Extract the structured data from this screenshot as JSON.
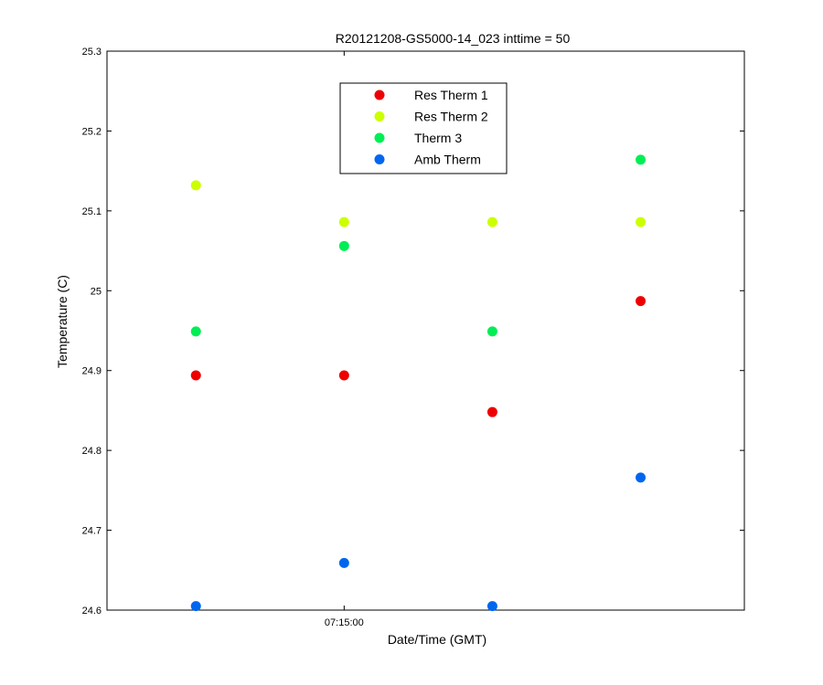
{
  "chart_data": {
    "type": "scatter",
    "title": "R20121208-GS5000-14_023 inttime = 50",
    "xlabel": "Date/Time (GMT)",
    "ylabel": "Temperature (C)",
    "ylim": [
      24.6,
      25.3
    ],
    "yticks": [
      24.6,
      24.7,
      24.8,
      24.9,
      25,
      25.1,
      25.2,
      25.3
    ],
    "ytick_labels": [
      "24.6",
      "24.7",
      "24.8",
      "24.9",
      "25",
      "25.1",
      "25.2",
      "25.3"
    ],
    "xticks": [
      {
        "label": "07:15:00",
        "x": 2
      }
    ],
    "xlim": [
      0.4,
      4.7
    ],
    "legend_position": "top-center",
    "series": [
      {
        "name": "Res Therm 1",
        "color": "#ee0000",
        "x": [
          1,
          2,
          3,
          4
        ],
        "y": [
          24.894,
          24.894,
          24.848,
          24.987
        ]
      },
      {
        "name": "Res Therm 2",
        "color": "#ccff00",
        "x": [
          1,
          2,
          3,
          4
        ],
        "y": [
          25.132,
          25.086,
          25.086,
          25.086
        ]
      },
      {
        "name": "Therm 3",
        "color": "#00ee55",
        "x": [
          1,
          2,
          3,
          4
        ],
        "y": [
          24.949,
          25.056,
          24.949,
          25.164
        ]
      },
      {
        "name": "Amb Therm",
        "color": "#0066ee",
        "x": [
          1,
          2,
          3,
          4
        ],
        "y": [
          24.605,
          24.659,
          24.605,
          24.766
        ]
      }
    ]
  }
}
